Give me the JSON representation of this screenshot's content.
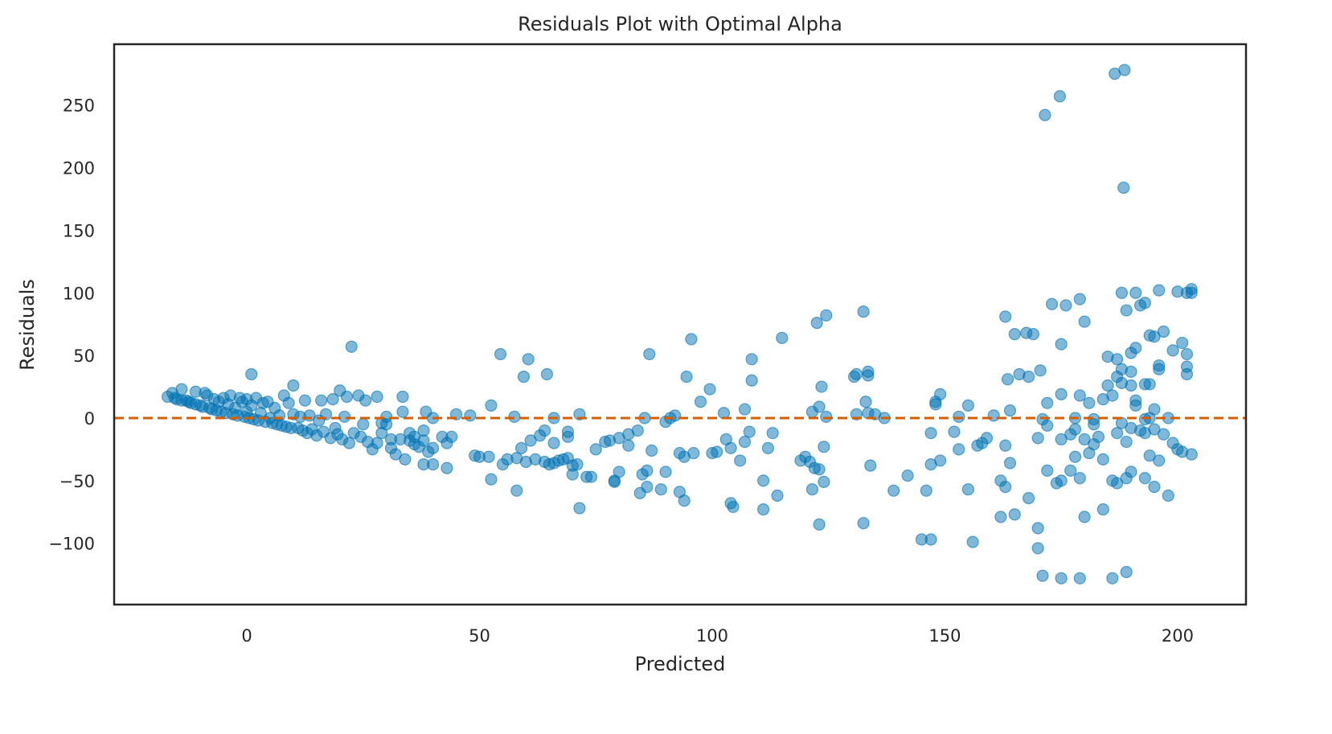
{
  "chart_data": {
    "type": "scatter",
    "title": "Residuals Plot with Optimal Alpha",
    "xlabel": "Predicted",
    "ylabel": "Residuals",
    "xlim": [
      -28.5,
      214.7
    ],
    "ylim": [
      -149,
      298.6
    ],
    "xticks": [
      0,
      50,
      100,
      150,
      200
    ],
    "yticks": [
      -100,
      -50,
      0,
      50,
      100,
      150,
      200,
      250
    ],
    "ytick_labels": [
      "−100",
      "−50",
      "0",
      "50",
      "100",
      "150",
      "200",
      "250"
    ],
    "grid": false,
    "point_color": "#0072B2",
    "point_alpha": 0.5,
    "reference_line": {
      "y": 0,
      "style": "dashed",
      "color": "#D55E00"
    },
    "points": [
      [
        -17,
        17
      ],
      [
        -16,
        20
      ],
      [
        -15.5,
        16
      ],
      [
        -15,
        15
      ],
      [
        -14,
        23
      ],
      [
        -14,
        14
      ],
      [
        -13,
        14
      ],
      [
        -12.5,
        13
      ],
      [
        -12,
        12
      ],
      [
        -11,
        21
      ],
      [
        -11,
        11
      ],
      [
        -10,
        10
      ],
      [
        -9.5,
        9
      ],
      [
        -9,
        20
      ],
      [
        -8.5,
        18
      ],
      [
        -8,
        8
      ],
      [
        -7.5,
        7
      ],
      [
        -7,
        15
      ],
      [
        -6.5,
        6
      ],
      [
        -6,
        13
      ],
      [
        -5.5,
        5
      ],
      [
        -5,
        16
      ],
      [
        -4.5,
        4
      ],
      [
        -4,
        11
      ],
      [
        -3.5,
        18
      ],
      [
        -3,
        3
      ],
      [
        -2.5,
        8
      ],
      [
        -2,
        2
      ],
      [
        -1.5,
        16
      ],
      [
        -1,
        13
      ],
      [
        -0.5,
        1
      ],
      [
        0,
        15
      ],
      [
        0,
        5
      ],
      [
        0.5,
        0
      ],
      [
        1,
        35
      ],
      [
        1,
        10
      ],
      [
        1.5,
        -1
      ],
      [
        2,
        16
      ],
      [
        2.5,
        -2
      ],
      [
        3,
        4
      ],
      [
        3.5,
        12
      ],
      [
        4,
        -3
      ],
      [
        4.5,
        13
      ],
      [
        5,
        0
      ],
      [
        5.5,
        -4
      ],
      [
        6,
        8
      ],
      [
        6.5,
        -5
      ],
      [
        7,
        2
      ],
      [
        7.5,
        -6
      ],
      [
        8,
        18
      ],
      [
        8.5,
        -7
      ],
      [
        9,
        12
      ],
      [
        9.5,
        -8
      ],
      [
        10,
        26
      ],
      [
        10,
        3
      ],
      [
        11,
        -8
      ],
      [
        11.5,
        1
      ],
      [
        12,
        -10
      ],
      [
        12.5,
        14
      ],
      [
        13,
        -12
      ],
      [
        13.5,
        2
      ],
      [
        14,
        -9
      ],
      [
        15,
        -14
      ],
      [
        15.5,
        -2
      ],
      [
        16,
        14
      ],
      [
        16.5,
        -11
      ],
      [
        17,
        3
      ],
      [
        18,
        -16
      ],
      [
        18.5,
        15
      ],
      [
        19,
        -8
      ],
      [
        19.5,
        -13
      ],
      [
        20,
        22
      ],
      [
        20.5,
        -17
      ],
      [
        21,
        1
      ],
      [
        21.5,
        17
      ],
      [
        22,
        -20
      ],
      [
        22.5,
        57
      ],
      [
        23,
        -12
      ],
      [
        24,
        18
      ],
      [
        24.5,
        -15
      ],
      [
        25,
        -5
      ],
      [
        25.5,
        14
      ],
      [
        26,
        -19
      ],
      [
        27,
        -25
      ],
      [
        28,
        -20
      ],
      [
        28,
        17
      ],
      [
        29,
        -12
      ],
      [
        29,
        -4
      ],
      [
        30,
        -5
      ],
      [
        30,
        1
      ],
      [
        31,
        -17
      ],
      [
        31,
        -24
      ],
      [
        32,
        -29
      ],
      [
        33,
        -17
      ],
      [
        33.5,
        17
      ],
      [
        33.5,
        5
      ],
      [
        34,
        -33
      ],
      [
        35,
        -18
      ],
      [
        35,
        -12
      ],
      [
        36,
        -15
      ],
      [
        36,
        -21
      ],
      [
        37,
        -23
      ],
      [
        38,
        -10
      ],
      [
        38,
        -18
      ],
      [
        38,
        -37
      ],
      [
        38.5,
        5
      ],
      [
        39,
        -27
      ],
      [
        40,
        -24
      ],
      [
        40,
        -37
      ],
      [
        40,
        0
      ],
      [
        42,
        -15
      ],
      [
        43,
        -20
      ],
      [
        43,
        -40
      ],
      [
        44,
        -15
      ],
      [
        45,
        3
      ],
      [
        48,
        2
      ],
      [
        49,
        -30
      ],
      [
        50,
        -31
      ],
      [
        52,
        -31
      ],
      [
        52.5,
        10
      ],
      [
        52.5,
        -49
      ],
      [
        54.5,
        51
      ],
      [
        55,
        -37
      ],
      [
        56,
        -33
      ],
      [
        57.5,
        1
      ],
      [
        58,
        -32
      ],
      [
        58,
        -58
      ],
      [
        59,
        -24
      ],
      [
        59.5,
        33
      ],
      [
        60,
        -35
      ],
      [
        60.5,
        47
      ],
      [
        61,
        -18
      ],
      [
        62,
        -33
      ],
      [
        63,
        -14
      ],
      [
        64,
        -10
      ],
      [
        64,
        -35
      ],
      [
        64.5,
        35
      ],
      [
        65,
        -37
      ],
      [
        66,
        -36
      ],
      [
        66,
        -20
      ],
      [
        66,
        0
      ],
      [
        67,
        -34
      ],
      [
        68,
        -33
      ],
      [
        69,
        -32
      ],
      [
        69,
        -15
      ],
      [
        69,
        -11
      ],
      [
        70,
        -38
      ],
      [
        70,
        -45
      ],
      [
        71,
        -37
      ],
      [
        71.5,
        3
      ],
      [
        71.5,
        -72
      ],
      [
        73,
        -47
      ],
      [
        74,
        -47
      ],
      [
        75,
        -25
      ],
      [
        77,
        -19
      ],
      [
        78,
        -18
      ],
      [
        79,
        -50
      ],
      [
        79,
        -51
      ],
      [
        80,
        -16
      ],
      [
        80,
        -43
      ],
      [
        82,
        -22
      ],
      [
        82,
        -13
      ],
      [
        84,
        -10
      ],
      [
        84.5,
        -60
      ],
      [
        85,
        -45
      ],
      [
        85.5,
        0
      ],
      [
        86,
        -42
      ],
      [
        86,
        -55
      ],
      [
        86.5,
        51
      ],
      [
        87,
        -26
      ],
      [
        89,
        -57
      ],
      [
        90,
        -43
      ],
      [
        90,
        -3
      ],
      [
        91,
        0
      ],
      [
        92,
        2
      ],
      [
        93,
        -59
      ],
      [
        93,
        -28
      ],
      [
        94,
        -31
      ],
      [
        94,
        -66
      ],
      [
        94.5,
        33
      ],
      [
        95.5,
        63
      ],
      [
        96,
        -28
      ],
      [
        97.5,
        13
      ],
      [
        99.5,
        23
      ],
      [
        100,
        -28
      ],
      [
        101,
        -27
      ],
      [
        102.5,
        4
      ],
      [
        103,
        -17
      ],
      [
        104,
        -24
      ],
      [
        104,
        -68
      ],
      [
        104.5,
        -71
      ],
      [
        106,
        -34
      ],
      [
        107,
        7
      ],
      [
        107,
        -19
      ],
      [
        108,
        -11
      ],
      [
        108.5,
        47
      ],
      [
        108.5,
        30
      ],
      [
        111,
        -73
      ],
      [
        111,
        -50
      ],
      [
        112,
        -24
      ],
      [
        113,
        -12
      ],
      [
        114,
        -62
      ],
      [
        115,
        64
      ],
      [
        119,
        -34
      ],
      [
        120,
        -31
      ],
      [
        121,
        -35
      ],
      [
        121.5,
        5
      ],
      [
        121.5,
        -57
      ],
      [
        122,
        -40
      ],
      [
        122.5,
        76
      ],
      [
        123,
        9
      ],
      [
        123,
        -41
      ],
      [
        123,
        -85
      ],
      [
        123.5,
        25
      ],
      [
        124,
        -23
      ],
      [
        124,
        -51
      ],
      [
        124.5,
        82
      ],
      [
        124.5,
        1
      ],
      [
        130.5,
        33
      ],
      [
        131,
        35
      ],
      [
        131,
        3
      ],
      [
        132.5,
        85
      ],
      [
        132.5,
        -84
      ],
      [
        133,
        13
      ],
      [
        133.5,
        37
      ],
      [
        133.5,
        34
      ],
      [
        133.5,
        4
      ],
      [
        134,
        -38
      ],
      [
        135,
        3
      ],
      [
        137,
        0
      ],
      [
        139,
        -58
      ],
      [
        142,
        -46
      ],
      [
        145,
        -97
      ],
      [
        146,
        -58
      ],
      [
        147,
        -97
      ],
      [
        147,
        -37
      ],
      [
        147,
        -12
      ],
      [
        148,
        13
      ],
      [
        148,
        11
      ],
      [
        149,
        19
      ],
      [
        149,
        -34
      ],
      [
        152,
        -11
      ],
      [
        153,
        1
      ],
      [
        153,
        -25
      ],
      [
        155,
        10
      ],
      [
        155,
        -57
      ],
      [
        156,
        -99
      ],
      [
        157,
        -22
      ],
      [
        158,
        -20
      ],
      [
        159,
        -16
      ],
      [
        160.5,
        2
      ],
      [
        162,
        -79
      ],
      [
        162,
        -50
      ],
      [
        163,
        81
      ],
      [
        163,
        -55
      ],
      [
        163,
        -22
      ],
      [
        163.5,
        31
      ],
      [
        164,
        6
      ],
      [
        164,
        -36
      ],
      [
        165,
        67
      ],
      [
        165,
        -77
      ],
      [
        166,
        35
      ],
      [
        167.5,
        68
      ],
      [
        168,
        33
      ],
      [
        168,
        -64
      ],
      [
        169,
        67
      ],
      [
        170,
        -88
      ],
      [
        170,
        -104
      ],
      [
        170,
        -16
      ],
      [
        170.5,
        38
      ],
      [
        171,
        -1
      ],
      [
        171,
        -126
      ],
      [
        171.5,
        242
      ],
      [
        172,
        -6
      ],
      [
        172,
        12
      ],
      [
        172,
        -42
      ],
      [
        173,
        91
      ],
      [
        174,
        -52
      ],
      [
        174.7,
        257
      ],
      [
        175,
        59
      ],
      [
        175,
        19
      ],
      [
        175,
        -17
      ],
      [
        175,
        -50
      ],
      [
        175,
        -128
      ],
      [
        176,
        90
      ],
      [
        177,
        -42
      ],
      [
        177,
        -13
      ],
      [
        178,
        0
      ],
      [
        178,
        -9
      ],
      [
        178,
        -31
      ],
      [
        179,
        95
      ],
      [
        179,
        18
      ],
      [
        179,
        -48
      ],
      [
        179,
        -128
      ],
      [
        180,
        77
      ],
      [
        180,
        -17
      ],
      [
        180,
        -79
      ],
      [
        181,
        12
      ],
      [
        181,
        -28
      ],
      [
        182,
        -1
      ],
      [
        182,
        -5
      ],
      [
        182,
        -21
      ],
      [
        183,
        -15
      ],
      [
        184,
        15
      ],
      [
        184,
        -33
      ],
      [
        184,
        -73
      ],
      [
        185,
        49
      ],
      [
        185,
        26
      ],
      [
        186,
        18
      ],
      [
        186,
        -50
      ],
      [
        186,
        -128
      ],
      [
        186.5,
        275
      ],
      [
        187,
        47
      ],
      [
        187,
        33
      ],
      [
        187,
        -12
      ],
      [
        187,
        -52
      ],
      [
        188,
        100
      ],
      [
        188,
        39
      ],
      [
        188,
        28
      ],
      [
        188,
        -4
      ],
      [
        188.4,
        184
      ],
      [
        188.6,
        278
      ],
      [
        189,
        86
      ],
      [
        189,
        -19
      ],
      [
        189,
        -48
      ],
      [
        189,
        -123
      ],
      [
        190,
        52
      ],
      [
        190,
        37
      ],
      [
        190,
        26
      ],
      [
        190,
        -8
      ],
      [
        190,
        -43
      ],
      [
        191,
        56
      ],
      [
        191,
        100
      ],
      [
        191,
        14
      ],
      [
        191,
        10
      ],
      [
        192,
        90
      ],
      [
        192,
        -10
      ],
      [
        193,
        92
      ],
      [
        193,
        27
      ],
      [
        193,
        -1
      ],
      [
        193,
        -12
      ],
      [
        193,
        -48
      ],
      [
        194,
        66
      ],
      [
        194,
        27
      ],
      [
        194,
        0
      ],
      [
        194,
        -30
      ],
      [
        195,
        65
      ],
      [
        195,
        7
      ],
      [
        195,
        -9
      ],
      [
        195,
        -55
      ],
      [
        196,
        102
      ],
      [
        196,
        42
      ],
      [
        196,
        39
      ],
      [
        196,
        -34
      ],
      [
        197,
        69
      ],
      [
        197,
        -13
      ],
      [
        198,
        0
      ],
      [
        198,
        -62
      ],
      [
        199,
        54
      ],
      [
        199,
        -20
      ],
      [
        200,
        101
      ],
      [
        200,
        -25
      ],
      [
        201,
        60
      ],
      [
        201,
        -27
      ],
      [
        202,
        100
      ],
      [
        202,
        51
      ],
      [
        202,
        41
      ],
      [
        202,
        35
      ],
      [
        203,
        103
      ],
      [
        203,
        100
      ],
      [
        203,
        -29
      ]
    ]
  }
}
